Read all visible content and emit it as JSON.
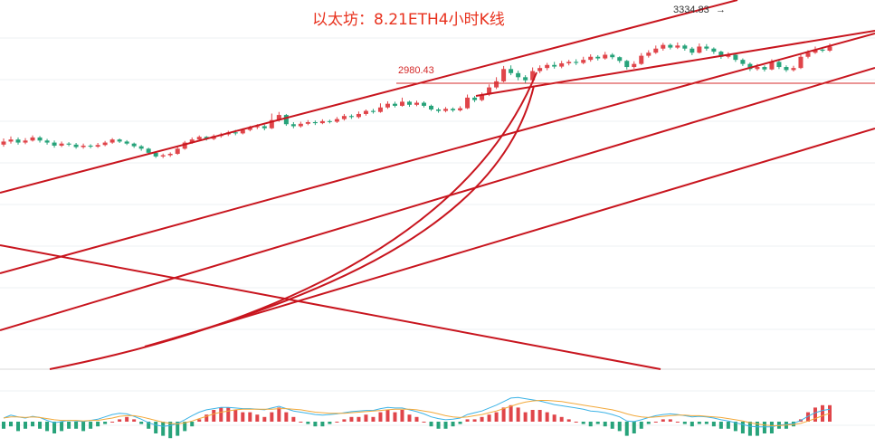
{
  "chart_data": {
    "type": "candlestick",
    "title": "以太坊：8.21ETH4小时K线",
    "annotations": {
      "horizontal_level_label": "2980.43",
      "high_label": "3334.83",
      "high_arrow": "→"
    },
    "colors": {
      "up": "#e0454a",
      "down": "#27a37a",
      "trendline": "#c8151e",
      "title": "#e8321e",
      "macd_line": "#3cb3e6",
      "signal_line": "#f2a93b"
    },
    "price_axis": {
      "label_level": 2980.43,
      "label_high": 3334.83
    },
    "candles": [
      [
        2680,
        2695,
        2710,
        2670
      ],
      [
        2695,
        2705,
        2720,
        2685
      ],
      [
        2705,
        2690,
        2715,
        2680
      ],
      [
        2690,
        2700,
        2712,
        2682
      ],
      [
        2700,
        2715,
        2725,
        2695
      ],
      [
        2715,
        2700,
        2722,
        2690
      ],
      [
        2700,
        2690,
        2708,
        2680
      ],
      [
        2690,
        2675,
        2700,
        2665
      ],
      [
        2675,
        2685,
        2695,
        2668
      ],
      [
        2685,
        2680,
        2692,
        2672
      ],
      [
        2680,
        2668,
        2688,
        2660
      ],
      [
        2668,
        2675,
        2685,
        2660
      ],
      [
        2675,
        2670,
        2682,
        2662
      ],
      [
        2670,
        2678,
        2688,
        2664
      ],
      [
        2678,
        2690,
        2698,
        2672
      ],
      [
        2690,
        2705,
        2712,
        2684
      ],
      [
        2705,
        2695,
        2710,
        2688
      ],
      [
        2695,
        2685,
        2702,
        2678
      ],
      [
        2685,
        2672,
        2690,
        2664
      ],
      [
        2672,
        2660,
        2678,
        2650
      ],
      [
        2660,
        2640,
        2665,
        2632
      ],
      [
        2640,
        2622,
        2648,
        2615
      ],
      [
        2622,
        2628,
        2636,
        2614
      ],
      [
        2628,
        2635,
        2642,
        2620
      ],
      [
        2635,
        2660,
        2668,
        2630
      ],
      [
        2660,
        2690,
        2698,
        2655
      ],
      [
        2690,
        2705,
        2715,
        2684
      ],
      [
        2705,
        2718,
        2725,
        2698
      ],
      [
        2718,
        2708,
        2722,
        2700
      ],
      [
        2708,
        2722,
        2730,
        2702
      ],
      [
        2722,
        2730,
        2738,
        2714
      ],
      [
        2730,
        2740,
        2748,
        2722
      ],
      [
        2740,
        2735,
        2752,
        2726
      ],
      [
        2735,
        2752,
        2760,
        2730
      ],
      [
        2752,
        2765,
        2772,
        2745
      ],
      [
        2765,
        2770,
        2780,
        2756
      ],
      [
        2770,
        2760,
        2778,
        2750
      ],
      [
        2760,
        2800,
        2832,
        2756
      ],
      [
        2800,
        2825,
        2840,
        2792
      ],
      [
        2825,
        2780,
        2830,
        2772
      ],
      [
        2780,
        2770,
        2790,
        2760
      ],
      [
        2770,
        2782,
        2792,
        2763
      ],
      [
        2782,
        2790,
        2800,
        2775
      ],
      [
        2790,
        2785,
        2798,
        2776
      ],
      [
        2785,
        2795,
        2804,
        2780
      ],
      [
        2795,
        2792,
        2802,
        2784
      ],
      [
        2792,
        2805,
        2815,
        2786
      ],
      [
        2805,
        2820,
        2830,
        2798
      ],
      [
        2820,
        2815,
        2828,
        2806
      ],
      [
        2815,
        2830,
        2842,
        2808
      ],
      [
        2830,
        2845,
        2852,
        2822
      ],
      [
        2845,
        2840,
        2855,
        2832
      ],
      [
        2840,
        2862,
        2882,
        2836
      ],
      [
        2862,
        2880,
        2892,
        2855
      ],
      [
        2880,
        2870,
        2890,
        2862
      ],
      [
        2870,
        2890,
        2910,
        2866
      ],
      [
        2890,
        2875,
        2895,
        2865
      ],
      [
        2875,
        2885,
        2895,
        2868
      ],
      [
        2885,
        2870,
        2892,
        2862
      ],
      [
        2870,
        2852,
        2876,
        2845
      ],
      [
        2852,
        2845,
        2860,
        2836
      ],
      [
        2845,
        2855,
        2864,
        2838
      ],
      [
        2855,
        2848,
        2862,
        2840
      ],
      [
        2848,
        2858,
        2868,
        2842
      ],
      [
        2858,
        2910,
        2925,
        2854
      ],
      [
        2910,
        2898,
        2918,
        2888
      ],
      [
        2898,
        2925,
        2935,
        2892
      ],
      [
        2925,
        2960,
        2975,
        2918
      ],
      [
        2960,
        2990,
        3010,
        2952
      ],
      [
        2990,
        3050,
        3065,
        2985
      ],
      [
        3050,
        3030,
        3068,
        3020
      ],
      [
        3030,
        3010,
        3042,
        2995
      ],
      [
        3010,
        2995,
        3020,
        2980
      ],
      [
        2995,
        3040,
        3058,
        2990
      ],
      [
        3040,
        3055,
        3068,
        3030
      ],
      [
        3055,
        3070,
        3080,
        3044
      ],
      [
        3070,
        3062,
        3085,
        3052
      ],
      [
        3062,
        3078,
        3090,
        3054
      ],
      [
        3078,
        3085,
        3095,
        3068
      ],
      [
        3085,
        3080,
        3098,
        3070
      ],
      [
        3080,
        3095,
        3110,
        3074
      ],
      [
        3095,
        3110,
        3122,
        3086
      ],
      [
        3110,
        3102,
        3118,
        3092
      ],
      [
        3102,
        3120,
        3134,
        3096
      ],
      [
        3120,
        3108,
        3128,
        3098
      ],
      [
        3108,
        3090,
        3112,
        3080
      ],
      [
        3090,
        3060,
        3095,
        3048
      ],
      [
        3060,
        3075,
        3088,
        3052
      ],
      [
        3075,
        3115,
        3128,
        3070
      ],
      [
        3115,
        3130,
        3142,
        3106
      ],
      [
        3130,
        3150,
        3165,
        3124
      ],
      [
        3150,
        3168,
        3178,
        3140
      ],
      [
        3168,
        3155,
        3175,
        3146
      ],
      [
        3155,
        3165,
        3180,
        3148
      ],
      [
        3165,
        3150,
        3172,
        3140
      ],
      [
        3150,
        3130,
        3158,
        3118
      ],
      [
        3130,
        3160,
        3175,
        3126
      ],
      [
        3160,
        3150,
        3172,
        3140
      ],
      [
        3150,
        3135,
        3156,
        3124
      ],
      [
        3135,
        3110,
        3140,
        3100
      ],
      [
        3110,
        3120,
        3132,
        3102
      ],
      [
        3120,
        3095,
        3126,
        3085
      ],
      [
        3095,
        3075,
        3102,
        3065
      ],
      [
        3075,
        3050,
        3082,
        3040
      ],
      [
        3050,
        3060,
        3075,
        3042
      ],
      [
        3060,
        3048,
        3068,
        3038
      ],
      [
        3048,
        3085,
        3098,
        3044
      ],
      [
        3085,
        3060,
        3092,
        3050
      ],
      [
        3060,
        3045,
        3068,
        3036
      ],
      [
        3045,
        3055,
        3066,
        3038
      ],
      [
        3055,
        3110,
        3125,
        3050
      ],
      [
        3110,
        3130,
        3142,
        3102
      ],
      [
        3130,
        3145,
        3160,
        3124
      ],
      [
        3145,
        3140,
        3158,
        3132
      ],
      [
        3140,
        3160,
        3175,
        3134
      ]
    ],
    "macd": {
      "histogram": [
        -3,
        -2,
        -4,
        -3,
        -2,
        -3,
        -4,
        -5,
        -4,
        -3,
        -3,
        -4,
        -3,
        -2,
        -1,
        0,
        1,
        2,
        1,
        -1,
        -3,
        -5,
        -6,
        -7,
        -6,
        -4,
        -2,
        1,
        3,
        5,
        6,
        6,
        5,
        4,
        4,
        3,
        2,
        4,
        6,
        4,
        2,
        0,
        -1,
        -2,
        -2,
        -1,
        0,
        1,
        2,
        2,
        3,
        2,
        4,
        5,
        4,
        5,
        3,
        2,
        0,
        -2,
        -3,
        -3,
        -2,
        -1,
        1,
        1,
        2,
        3,
        4,
        6,
        7,
        6,
        4,
        5,
        5,
        4,
        3,
        2,
        1,
        0,
        -1,
        -2,
        -1,
        -2,
        -3,
        -4,
        -6,
        -5,
        -3,
        -1,
        0,
        1,
        1,
        0,
        -1,
        -2,
        -1,
        -1,
        -2,
        -3,
        -3,
        -4,
        -5,
        -6,
        -6,
        -5,
        -5,
        -3,
        -3,
        -2,
        1,
        4,
        6,
        7,
        7
      ],
      "macd_line": [
        0,
        0.5,
        0.2,
        0,
        0.3,
        0.1,
        -0.4,
        -0.8,
        -0.6,
        -0.4,
        -0.5,
        -0.6,
        -0.4,
        -0.2,
        0.2,
        0.6,
        0.8,
        0.7,
        0.3,
        -0.2,
        -0.8,
        -1.2,
        -1.4,
        -1.3,
        -0.9,
        -0.3,
        0.4,
        1,
        1.4,
        1.6,
        1.8,
        1.8,
        1.7,
        1.6,
        1.6,
        1.5,
        1.4,
        1.7,
        2,
        1.6,
        1.2,
        1,
        0.8,
        0.6,
        0.5,
        0.6,
        0.7,
        0.9,
        1.1,
        1.2,
        1.3,
        1.3,
        1.6,
        1.8,
        1.7,
        1.7,
        1.4,
        1.1,
        0.7,
        0.2,
        -0.1,
        -0.3,
        -0.2,
        0,
        0.6,
        0.9,
        1.2,
        1.7,
        2.2,
        2.8,
        3.4,
        3.5,
        3.3,
        3.1,
        2.9,
        2.6,
        2.3,
        2.1,
        1.9,
        1.7,
        1.5,
        1.2,
        1.1,
        0.9,
        0.6,
        0.2,
        -0.5,
        -0.6,
        -0.3,
        0.1,
        0.4,
        0.6,
        0.7,
        0.6,
        0.4,
        0.2,
        0.3,
        0.2,
        0,
        -0.3,
        -0.5,
        -0.8,
        -1.1,
        -1.4,
        -1.5,
        -1.5,
        -1.5,
        -1.2,
        -1.1,
        -0.9,
        -0.4,
        0.3,
        0.9,
        1.3,
        1.5
      ],
      "signal_line": [
        0,
        0.2,
        0.2,
        0.1,
        0.2,
        0.1,
        -0.1,
        -0.3,
        -0.4,
        -0.4,
        -0.4,
        -0.5,
        -0.4,
        -0.4,
        -0.2,
        0,
        0.3,
        0.4,
        0.4,
        0.2,
        -0.1,
        -0.4,
        -0.7,
        -0.9,
        -1,
        -0.8,
        -0.5,
        -0.1,
        0.3,
        0.7,
        1,
        1.2,
        1.4,
        1.5,
        1.5,
        1.5,
        1.5,
        1.5,
        1.6,
        1.6,
        1.5,
        1.4,
        1.2,
        1,
        0.9,
        0.8,
        0.8,
        0.8,
        0.9,
        1,
        1.1,
        1.2,
        1.3,
        1.4,
        1.5,
        1.5,
        1.5,
        1.4,
        1.2,
        1,
        0.7,
        0.4,
        0.2,
        0.1,
        0.2,
        0.4,
        0.6,
        0.9,
        1.2,
        1.6,
        2,
        2.4,
        2.7,
        2.9,
        3,
        3,
        2.9,
        2.8,
        2.6,
        2.4,
        2.2,
        2,
        1.8,
        1.6,
        1.4,
        1.1,
        0.7,
        0.4,
        0.2,
        0.1,
        0.2,
        0.3,
        0.4,
        0.5,
        0.5,
        0.4,
        0.4,
        0.3,
        0.2,
        0.1,
        -0.1,
        -0.3,
        -0.5,
        -0.8,
        -1,
        -1.2,
        -1.3,
        -1.3,
        -1.2,
        -1.1,
        -0.9,
        -0.5,
        -0.1,
        0.4,
        0.8
      ]
    }
  }
}
